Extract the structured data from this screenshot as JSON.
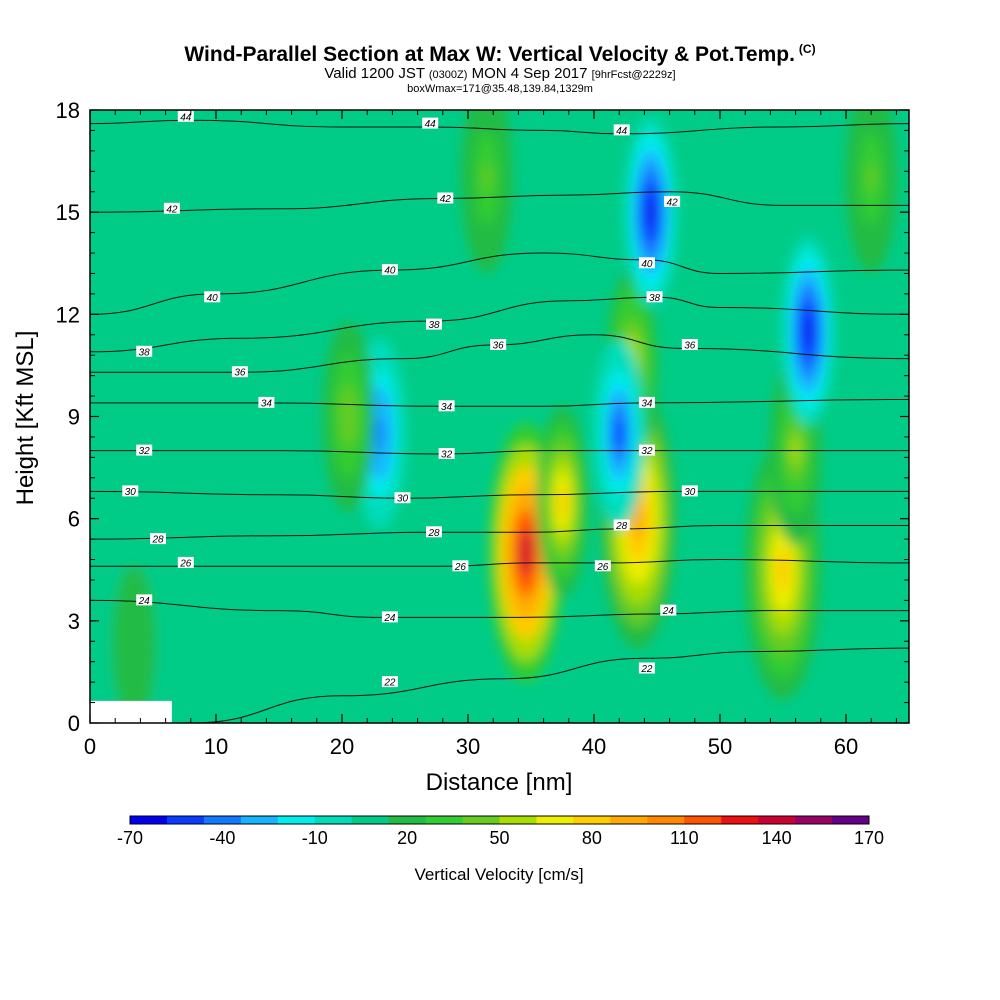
{
  "header": {
    "title": "Wind-Parallel Section at Max W: Vertical Velocity & Pot.Temp.",
    "copyright": "(C)",
    "valid_prefix": "Valid 1200 JST",
    "valid_utc": "(0300Z)",
    "valid_date": "MON 4 Sep 2017",
    "forecast": "[9hrFcst@2229z]",
    "boxwmax": "boxWmax=171@35.48,139.84,1329m"
  },
  "chart_data": {
    "type": "heatmap",
    "xlabel": "Distance [nm]",
    "ylabel": "Height [Kft MSL]",
    "xlim": [
      0,
      65
    ],
    "ylim": [
      0,
      18
    ],
    "x_ticks": [
      "0",
      "10",
      "20",
      "30",
      "40",
      "50",
      "60"
    ],
    "y_ticks": [
      "0",
      "3",
      "6",
      "9",
      "12",
      "15",
      "18"
    ],
    "colorbar": {
      "title": "Vertical Velocity [cm/s]",
      "tick_labels": [
        "-70",
        "-40",
        "-10",
        "20",
        "50",
        "80",
        "110",
        "140",
        "170"
      ],
      "colors": [
        "#0000ee",
        "#0a3cff",
        "#1478ff",
        "#18b4ff",
        "#00eeee",
        "#00ddbb",
        "#00cc88",
        "#22bb44",
        "#33cc33",
        "#66cc22",
        "#aadd00",
        "#eeee00",
        "#ffcc00",
        "#ffaa00",
        "#ff8800",
        "#ff5500",
        "#ee1111",
        "#cc0033",
        "#990066",
        "#660088"
      ]
    },
    "background_value": 10,
    "velocity_features": [
      {
        "x": 34.6,
        "y": 5.0,
        "value": 140
      },
      {
        "x": 37.5,
        "y": 6.5,
        "value": 75
      },
      {
        "x": 43.5,
        "y": 6.0,
        "value": 95
      },
      {
        "x": 43.0,
        "y": 10.5,
        "value": 60
      },
      {
        "x": 55.0,
        "y": 4.5,
        "value": 85
      },
      {
        "x": 56.0,
        "y": 8.0,
        "value": 50
      },
      {
        "x": 44.5,
        "y": 15.0,
        "value": -65
      },
      {
        "x": 42.0,
        "y": 8.5,
        "value": -50
      },
      {
        "x": 57.0,
        "y": 11.5,
        "value": -60
      },
      {
        "x": 23.0,
        "y": 8.5,
        "value": -40
      },
      {
        "x": 3.5,
        "y": 2.3,
        "value": 25
      },
      {
        "x": 31.5,
        "y": 16.0,
        "value": 40
      },
      {
        "x": 62.0,
        "y": 16.0,
        "value": 40
      },
      {
        "x": 20.5,
        "y": 9.0,
        "value": 45
      }
    ],
    "theta_contours": [
      {
        "label": "22",
        "points": [
          [
            8,
            0
          ],
          [
            20,
            0.8
          ],
          [
            33,
            1.3
          ],
          [
            44,
            1.9
          ],
          [
            53,
            2.1
          ],
          [
            65,
            2.2
          ]
        ]
      },
      {
        "label": "24",
        "points": [
          [
            0,
            3.6
          ],
          [
            15,
            3.3
          ],
          [
            23,
            3.1
          ],
          [
            34,
            3.1
          ],
          [
            45,
            3.2
          ],
          [
            54,
            3.3
          ],
          [
            65,
            3.3
          ]
        ]
      },
      {
        "label": "26",
        "points": [
          [
            0,
            4.6
          ],
          [
            15,
            4.6
          ],
          [
            28,
            4.6
          ],
          [
            35,
            4.7
          ],
          [
            41,
            4.7
          ],
          [
            50,
            4.8
          ],
          [
            65,
            4.7
          ]
        ]
      },
      {
        "label": "28",
        "points": [
          [
            0,
            5.4
          ],
          [
            15,
            5.5
          ],
          [
            27,
            5.6
          ],
          [
            35,
            5.6
          ],
          [
            42,
            5.7
          ],
          [
            50,
            5.8
          ],
          [
            65,
            5.8
          ]
        ]
      },
      {
        "label": "30",
        "points": [
          [
            0,
            6.8
          ],
          [
            15,
            6.7
          ],
          [
            25,
            6.6
          ],
          [
            35,
            6.7
          ],
          [
            47,
            6.8
          ],
          [
            65,
            6.8
          ]
        ]
      },
      {
        "label": "32",
        "points": [
          [
            0,
            8.0
          ],
          [
            15,
            8.0
          ],
          [
            28,
            7.9
          ],
          [
            36,
            8.0
          ],
          [
            44,
            8.0
          ],
          [
            65,
            8.0
          ]
        ]
      },
      {
        "label": "34",
        "points": [
          [
            0,
            9.4
          ],
          [
            14,
            9.4
          ],
          [
            28,
            9.3
          ],
          [
            36,
            9.3
          ],
          [
            44,
            9.4
          ],
          [
            65,
            9.5
          ]
        ]
      },
      {
        "label": "36",
        "points": [
          [
            0,
            10.3
          ],
          [
            12,
            10.3
          ],
          [
            25,
            10.7
          ],
          [
            32,
            11.1
          ],
          [
            40,
            11.4
          ],
          [
            47,
            11.0
          ],
          [
            65,
            10.7
          ]
        ]
      },
      {
        "label": "38",
        "points": [
          [
            0,
            10.9
          ],
          [
            12,
            11.3
          ],
          [
            27,
            11.8
          ],
          [
            38,
            12.4
          ],
          [
            45,
            12.5
          ],
          [
            50,
            12.2
          ],
          [
            65,
            12.0
          ]
        ]
      },
      {
        "label": "40",
        "points": [
          [
            0,
            12.0
          ],
          [
            10,
            12.6
          ],
          [
            24,
            13.3
          ],
          [
            36,
            13.8
          ],
          [
            44,
            13.6
          ],
          [
            50,
            13.2
          ],
          [
            65,
            13.3
          ]
        ]
      },
      {
        "label": "42",
        "points": [
          [
            0,
            15.0
          ],
          [
            15,
            15.1
          ],
          [
            28,
            15.4
          ],
          [
            38,
            15.5
          ],
          [
            46,
            15.6
          ],
          [
            55,
            15.2
          ],
          [
            65,
            15.2
          ]
        ]
      },
      {
        "label": "44",
        "points": [
          [
            0,
            17.6
          ],
          [
            8,
            17.7
          ],
          [
            20,
            17.5
          ],
          [
            27,
            17.5
          ],
          [
            36,
            17.4
          ],
          [
            42,
            17.3
          ],
          [
            55,
            17.5
          ],
          [
            65,
            17.6
          ]
        ]
      }
    ],
    "contour_labels": [
      {
        "text": "44",
        "x": 7.6,
        "y": 17.8
      },
      {
        "text": "44",
        "x": 27.0,
        "y": 17.6
      },
      {
        "text": "44",
        "x": 42.2,
        "y": 17.4
      },
      {
        "text": "42",
        "x": 6.5,
        "y": 15.1
      },
      {
        "text": "42",
        "x": 28.2,
        "y": 15.4
      },
      {
        "text": "42",
        "x": 46.2,
        "y": 15.3
      },
      {
        "text": "40",
        "x": 9.7,
        "y": 12.5
      },
      {
        "text": "40",
        "x": 23.8,
        "y": 13.3
      },
      {
        "text": "40",
        "x": 44.2,
        "y": 13.5
      },
      {
        "text": "38",
        "x": 4.3,
        "y": 10.9
      },
      {
        "text": "38",
        "x": 27.3,
        "y": 11.7
      },
      {
        "text": "38",
        "x": 44.8,
        "y": 12.5
      },
      {
        "text": "36",
        "x": 11.9,
        "y": 10.3
      },
      {
        "text": "36",
        "x": 32.4,
        "y": 11.1
      },
      {
        "text": "36",
        "x": 47.6,
        "y": 11.1
      },
      {
        "text": "34",
        "x": 14.0,
        "y": 9.4
      },
      {
        "text": "34",
        "x": 28.3,
        "y": 9.3
      },
      {
        "text": "34",
        "x": 44.2,
        "y": 9.4
      },
      {
        "text": "32",
        "x": 4.3,
        "y": 8.0
      },
      {
        "text": "32",
        "x": 28.3,
        "y": 7.9
      },
      {
        "text": "32",
        "x": 44.2,
        "y": 8.0
      },
      {
        "text": "30",
        "x": 3.2,
        "y": 6.8
      },
      {
        "text": "30",
        "x": 24.8,
        "y": 6.6
      },
      {
        "text": "30",
        "x": 47.6,
        "y": 6.8
      },
      {
        "text": "28",
        "x": 5.4,
        "y": 5.4
      },
      {
        "text": "28",
        "x": 27.3,
        "y": 5.6
      },
      {
        "text": "28",
        "x": 42.2,
        "y": 5.8
      },
      {
        "text": "26",
        "x": 7.6,
        "y": 4.7
      },
      {
        "text": "26",
        "x": 29.4,
        "y": 4.6
      },
      {
        "text": "26",
        "x": 40.7,
        "y": 4.6
      },
      {
        "text": "24",
        "x": 4.3,
        "y": 3.6
      },
      {
        "text": "24",
        "x": 23.8,
        "y": 3.1
      },
      {
        "text": "24",
        "x": 45.9,
        "y": 3.3
      },
      {
        "text": "22",
        "x": 23.8,
        "y": 1.2
      },
      {
        "text": "22",
        "x": 44.2,
        "y": 1.6
      }
    ],
    "terrain": {
      "x_end": 6.5,
      "height": 0.65
    }
  }
}
